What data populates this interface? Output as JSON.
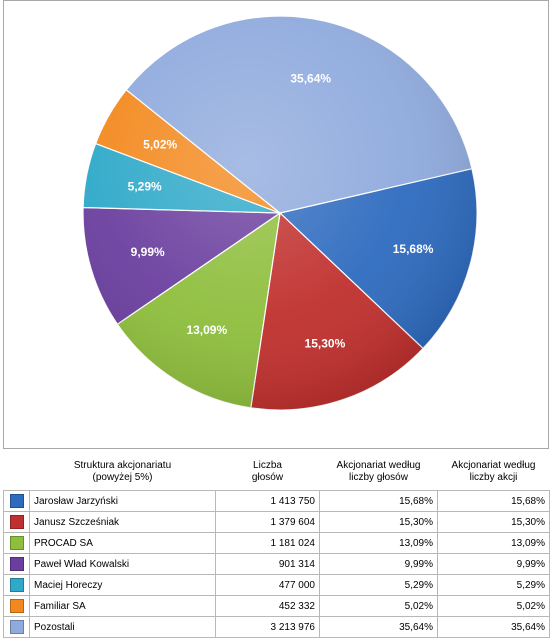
{
  "chart_data": {
    "type": "pie",
    "slices": [
      {
        "name": "Jarosław Jarzyński",
        "value": 15.68,
        "label": "15,68%",
        "color": "#2E6BBF"
      },
      {
        "name": "Janusz Szcześniak",
        "value": 15.3,
        "label": "15,30%",
        "color": "#C0302E"
      },
      {
        "name": "PROCAD SA",
        "value": 13.09,
        "label": "13,09%",
        "color": "#8EBE3C"
      },
      {
        "name": "Paweł Wład Kowalski",
        "value": 9.99,
        "label": "9,99%",
        "color": "#6A3E9E"
      },
      {
        "name": "Maciej Horeczy",
        "value": 5.29,
        "label": "5,29%",
        "color": "#2EA9C9"
      },
      {
        "name": "Familiar SA",
        "value": 5.02,
        "label": "5,02%",
        "color": "#F3891E"
      },
      {
        "name": "Pozostali",
        "value": 35.64,
        "label": "35,64%",
        "color": "#8FAADD"
      }
    ]
  },
  "table": {
    "headers": {
      "structure_line1": "Struktura akcjonariatu",
      "structure_line2": "(powyżej 5%)",
      "votes_line1": "Liczba",
      "votes_line2": "głosów",
      "by_votes_line1": "Akcjonariat według",
      "by_votes_line2": "liczby głosów",
      "by_shares_line1": "Akcjonariat według",
      "by_shares_line2": "liczby akcji"
    },
    "rows": [
      {
        "color": "#2E6BBF",
        "name": "Jarosław Jarzyński",
        "votes": "1 413 750",
        "pct_votes": "15,68%",
        "pct_shares": "15,68%"
      },
      {
        "color": "#C0302E",
        "name": "Janusz Szcześniak",
        "votes": "1 379 604",
        "pct_votes": "15,30%",
        "pct_shares": "15,30%"
      },
      {
        "color": "#8EBE3C",
        "name": "PROCAD SA",
        "votes": "1 181 024",
        "pct_votes": "13,09%",
        "pct_shares": "13,09%"
      },
      {
        "color": "#6A3E9E",
        "name": "Paweł Wład Kowalski",
        "votes": "901 314",
        "pct_votes": "9,99%",
        "pct_shares": "9,99%"
      },
      {
        "color": "#2EA9C9",
        "name": "Maciej Horeczy",
        "votes": "477 000",
        "pct_votes": "5,29%",
        "pct_shares": "5,29%"
      },
      {
        "color": "#F3891E",
        "name": "Familiar SA",
        "votes": "452 332",
        "pct_votes": "5,02%",
        "pct_shares": "5,02%"
      },
      {
        "color": "#8FAADD",
        "name": "Pozostali",
        "votes": "3 213 976",
        "pct_votes": "35,64%",
        "pct_shares": "35,64%"
      }
    ]
  }
}
